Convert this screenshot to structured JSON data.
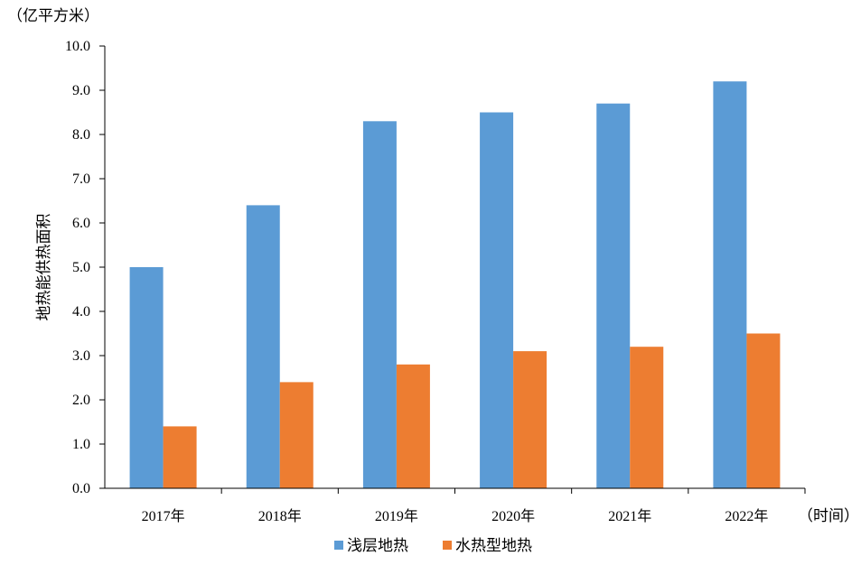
{
  "chart_data": {
    "type": "bar",
    "categories": [
      "2017年",
      "2018年",
      "2019年",
      "2020年",
      "2021年",
      "2022年"
    ],
    "series": [
      {
        "name": "浅层地热",
        "color": "#5B9BD5",
        "values": [
          5.0,
          6.4,
          8.3,
          8.5,
          8.7,
          9.2
        ]
      },
      {
        "name": "水热型地热",
        "color": "#ED7D31",
        "values": [
          1.4,
          2.4,
          2.8,
          3.1,
          3.2,
          3.5
        ]
      }
    ],
    "ylabel": "地热能供热面积",
    "y_unit": "（亿平方米）",
    "x_unit": "（时间）",
    "ylim": [
      0,
      10
    ],
    "yticks": [
      "0.0",
      "1.0",
      "2.0",
      "3.0",
      "4.0",
      "5.0",
      "6.0",
      "7.0",
      "8.0",
      "9.0",
      "10.0"
    ],
    "grid": false,
    "legend_position": "bottom"
  }
}
